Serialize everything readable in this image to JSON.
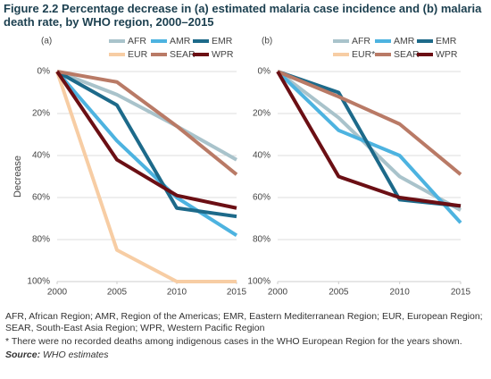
{
  "title": "Figure 2.2 Percentage decrease in (a) estimated malaria case incidence and (b) malaria death rate, by WHO region, 2000–2015",
  "notes": [
    "AFR, African Region; AMR, Region of the Americas; EMR, Eastern Mediterranean Region; EUR, European Region; SEAR, South-East Asia Region; WPR, Western Pacific Region",
    "* There were no recorded deaths among indigenous cases in the WHO European Region for the years shown."
  ],
  "source_label": "Source:",
  "source": "WHO estimates",
  "chart_data": [
    {
      "type": "line",
      "panel_label": "(a)",
      "ylabel": "Decrease",
      "x": [
        2000,
        2005,
        2010,
        2015
      ],
      "xlim": [
        2000,
        2015
      ],
      "xticks": [
        2000,
        2005,
        2010,
        2015
      ],
      "ylim": [
        0,
        100
      ],
      "y_inverted": true,
      "grid": true,
      "legend": "top-right",
      "yticks": [
        {
          "value": 0,
          "label": "0%"
        },
        {
          "value": 20,
          "label": "20%"
        },
        {
          "value": 40,
          "label": "40%"
        },
        {
          "value": 60,
          "label": "60%"
        },
        {
          "value": 80,
          "label": "80%"
        },
        {
          "value": 100,
          "label": "100%"
        }
      ],
      "series": [
        {
          "name": "AFR",
          "color": "#a9c3cb",
          "values": [
            0,
            11,
            26,
            42
          ]
        },
        {
          "name": "AMR",
          "color": "#4db3e0",
          "values": [
            0,
            33,
            60,
            78
          ]
        },
        {
          "name": "EMR",
          "color": "#1d6a8a",
          "values": [
            0,
            16,
            65,
            69
          ]
        },
        {
          "name": "EUR",
          "color": "#f7cda4",
          "values": [
            0,
            85,
            100,
            100
          ]
        },
        {
          "name": "SEAR",
          "color": "#b97a66",
          "values": [
            0,
            5,
            26,
            49
          ]
        },
        {
          "name": "WPR",
          "color": "#6b0f14",
          "values": [
            0,
            42,
            59,
            65
          ]
        }
      ]
    },
    {
      "type": "line",
      "panel_label": "(b)",
      "x": [
        2000,
        2005,
        2010,
        2015
      ],
      "xlim": [
        2000,
        2015
      ],
      "xticks": [
        2000,
        2005,
        2010,
        2015
      ],
      "ylim": [
        0,
        100
      ],
      "y_inverted": true,
      "grid": true,
      "legend": "top-right",
      "yticks": [
        {
          "value": 0,
          "label": "0%"
        },
        {
          "value": 20,
          "label": "20%"
        },
        {
          "value": 40,
          "label": "40%"
        },
        {
          "value": 60,
          "label": "60%"
        },
        {
          "value": 80,
          "label": "80%"
        },
        {
          "value": 100,
          "label": "100%"
        }
      ],
      "series": [
        {
          "name": "AFR",
          "color": "#a9c3cb",
          "values": [
            0,
            22,
            50,
            66
          ]
        },
        {
          "name": "AMR",
          "color": "#4db3e0",
          "values": [
            0,
            28,
            40,
            72
          ]
        },
        {
          "name": "EMR",
          "color": "#1d6a8a",
          "values": [
            0,
            10,
            61,
            64
          ]
        },
        {
          "name": "EUR*",
          "color": "#f7cda4",
          "values": [
            null,
            null,
            null,
            null
          ]
        },
        {
          "name": "SEAR",
          "color": "#b97a66",
          "values": [
            0,
            12,
            25,
            49
          ]
        },
        {
          "name": "WPR",
          "color": "#6b0f14",
          "values": [
            0,
            50,
            60,
            64
          ]
        }
      ]
    }
  ]
}
